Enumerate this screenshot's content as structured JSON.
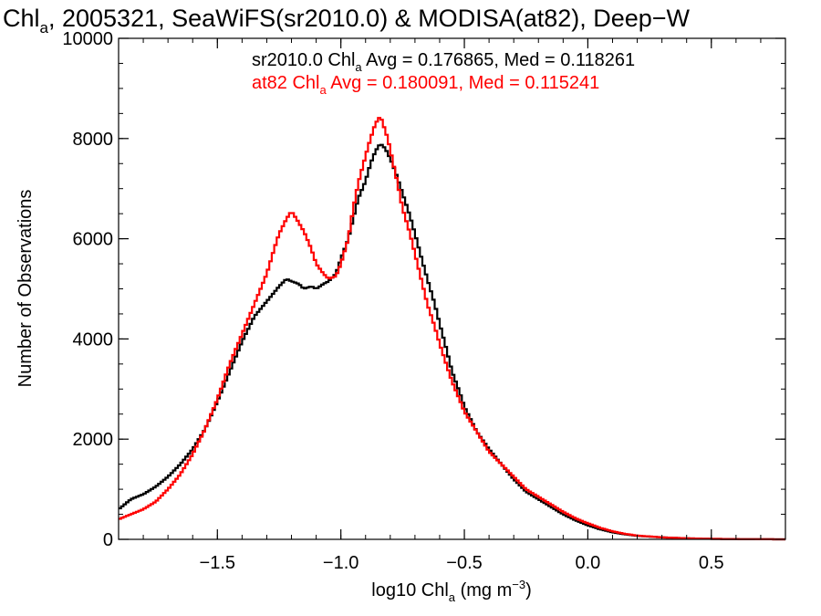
{
  "chart_data": {
    "type": "line",
    "title": {
      "pre": "Chl",
      "sub": "a",
      "post": ", 2005321, SeaWiFS(sr2010.0) & MODISA(at82), Deep−W"
    },
    "xlabel": {
      "pre": "log10 Chl",
      "sub": "a",
      "mid": " (mg m",
      "sup": "−3",
      "post": ")"
    },
    "ylabel": "Number of Observations",
    "xlim": [
      -1.9,
      0.8
    ],
    "ylim": [
      0,
      10000
    ],
    "x_ticks": [
      {
        "value": -1.5,
        "label": "−1.5"
      },
      {
        "value": -1.0,
        "label": "−1.0"
      },
      {
        "value": -0.5,
        "label": "−0.5"
      },
      {
        "value": 0.0,
        "label": "0.0"
      },
      {
        "value": 0.5,
        "label": "0.5"
      }
    ],
    "y_ticks": [
      {
        "value": 0,
        "label": "0"
      },
      {
        "value": 2000,
        "label": "2000"
      },
      {
        "value": 4000,
        "label": "4000"
      },
      {
        "value": 6000,
        "label": "6000"
      },
      {
        "value": 8000,
        "label": "8000"
      },
      {
        "value": 10000,
        "label": "10000"
      }
    ],
    "x_minor_step": 0.1,
    "y_minor_step": 500,
    "grid": false,
    "legend_placement": "top-center",
    "annotations": [
      {
        "pre": "sr2010.0 Chl",
        "sub": "a",
        "post": " Avg = 0.176865, Med = 0.118261",
        "color": "#000000"
      },
      {
        "pre": "at82 Chl",
        "sub": "a",
        "post": " Avg = 0.180091, Med = 0.115241",
        "color": "#ff0000"
      }
    ],
    "series": [
      {
        "name": "sr2010.0",
        "color": "#000000",
        "points": [
          [
            -1.9,
            600
          ],
          [
            -1.85,
            800
          ],
          [
            -1.8,
            900
          ],
          [
            -1.75,
            1050
          ],
          [
            -1.7,
            1250
          ],
          [
            -1.65,
            1500
          ],
          [
            -1.6,
            1800
          ],
          [
            -1.55,
            2200
          ],
          [
            -1.5,
            2750
          ],
          [
            -1.45,
            3350
          ],
          [
            -1.4,
            3950
          ],
          [
            -1.35,
            4450
          ],
          [
            -1.3,
            4750
          ],
          [
            -1.25,
            5050
          ],
          [
            -1.22,
            5200
          ],
          [
            -1.2,
            5150
          ],
          [
            -1.17,
            5100
          ],
          [
            -1.15,
            5000
          ],
          [
            -1.12,
            5050
          ],
          [
            -1.1,
            5000
          ],
          [
            -1.07,
            5100
          ],
          [
            -1.05,
            5150
          ],
          [
            -1.02,
            5300
          ],
          [
            -1.0,
            5600
          ],
          [
            -0.97,
            6000
          ],
          [
            -0.95,
            6400
          ],
          [
            -0.93,
            6800
          ],
          [
            -0.9,
            7150
          ],
          [
            -0.88,
            7500
          ],
          [
            -0.86,
            7750
          ],
          [
            -0.84,
            7900
          ],
          [
            -0.82,
            7800
          ],
          [
            -0.8,
            7600
          ],
          [
            -0.78,
            7350
          ],
          [
            -0.75,
            6900
          ],
          [
            -0.72,
            6450
          ],
          [
            -0.7,
            6100
          ],
          [
            -0.67,
            5550
          ],
          [
            -0.65,
            5200
          ],
          [
            -0.62,
            4700
          ],
          [
            -0.6,
            4300
          ],
          [
            -0.57,
            3750
          ],
          [
            -0.55,
            3350
          ],
          [
            -0.52,
            2950
          ],
          [
            -0.5,
            2650
          ],
          [
            -0.45,
            2150
          ],
          [
            -0.4,
            1800
          ],
          [
            -0.35,
            1500
          ],
          [
            -0.3,
            1200
          ],
          [
            -0.25,
            950
          ],
          [
            -0.2,
            800
          ],
          [
            -0.15,
            650
          ],
          [
            -0.1,
            500
          ],
          [
            -0.05,
            380
          ],
          [
            0.0,
            280
          ],
          [
            0.05,
            200
          ],
          [
            0.1,
            140
          ],
          [
            0.15,
            100
          ],
          [
            0.2,
            70
          ],
          [
            0.3,
            40
          ],
          [
            0.4,
            20
          ],
          [
            0.5,
            10
          ],
          [
            0.6,
            5
          ],
          [
            0.7,
            2
          ],
          [
            0.8,
            0
          ]
        ]
      },
      {
        "name": "at82",
        "color": "#ff0000",
        "points": [
          [
            -1.9,
            400
          ],
          [
            -1.85,
            500
          ],
          [
            -1.8,
            600
          ],
          [
            -1.75,
            750
          ],
          [
            -1.7,
            1000
          ],
          [
            -1.65,
            1300
          ],
          [
            -1.6,
            1700
          ],
          [
            -1.55,
            2200
          ],
          [
            -1.5,
            2800
          ],
          [
            -1.45,
            3500
          ],
          [
            -1.4,
            4100
          ],
          [
            -1.35,
            4700
          ],
          [
            -1.3,
            5300
          ],
          [
            -1.27,
            5800
          ],
          [
            -1.25,
            6100
          ],
          [
            -1.22,
            6400
          ],
          [
            -1.2,
            6550
          ],
          [
            -1.18,
            6400
          ],
          [
            -1.15,
            6150
          ],
          [
            -1.12,
            5800
          ],
          [
            -1.1,
            5500
          ],
          [
            -1.07,
            5300
          ],
          [
            -1.05,
            5200
          ],
          [
            -1.02,
            5250
          ],
          [
            -1.0,
            5500
          ],
          [
            -0.97,
            6000
          ],
          [
            -0.95,
            6600
          ],
          [
            -0.93,
            7100
          ],
          [
            -0.9,
            7650
          ],
          [
            -0.88,
            8000
          ],
          [
            -0.86,
            8300
          ],
          [
            -0.84,
            8450
          ],
          [
            -0.83,
            8300
          ],
          [
            -0.81,
            8000
          ],
          [
            -0.79,
            7550
          ],
          [
            -0.77,
            7100
          ],
          [
            -0.75,
            6600
          ],
          [
            -0.72,
            6100
          ],
          [
            -0.7,
            5700
          ],
          [
            -0.67,
            5100
          ],
          [
            -0.65,
            4700
          ],
          [
            -0.62,
            4250
          ],
          [
            -0.6,
            3900
          ],
          [
            -0.57,
            3450
          ],
          [
            -0.55,
            3150
          ],
          [
            -0.52,
            2800
          ],
          [
            -0.5,
            2550
          ],
          [
            -0.45,
            2150
          ],
          [
            -0.4,
            1750
          ],
          [
            -0.35,
            1500
          ],
          [
            -0.3,
            1250
          ],
          [
            -0.25,
            1000
          ],
          [
            -0.2,
            850
          ],
          [
            -0.15,
            700
          ],
          [
            -0.1,
            550
          ],
          [
            -0.05,
            420
          ],
          [
            0.0,
            320
          ],
          [
            0.05,
            230
          ],
          [
            0.1,
            160
          ],
          [
            0.15,
            110
          ],
          [
            0.2,
            75
          ],
          [
            0.3,
            40
          ],
          [
            0.4,
            20
          ],
          [
            0.5,
            10
          ],
          [
            0.6,
            5
          ],
          [
            0.7,
            2
          ],
          [
            0.8,
            0
          ]
        ]
      }
    ]
  }
}
